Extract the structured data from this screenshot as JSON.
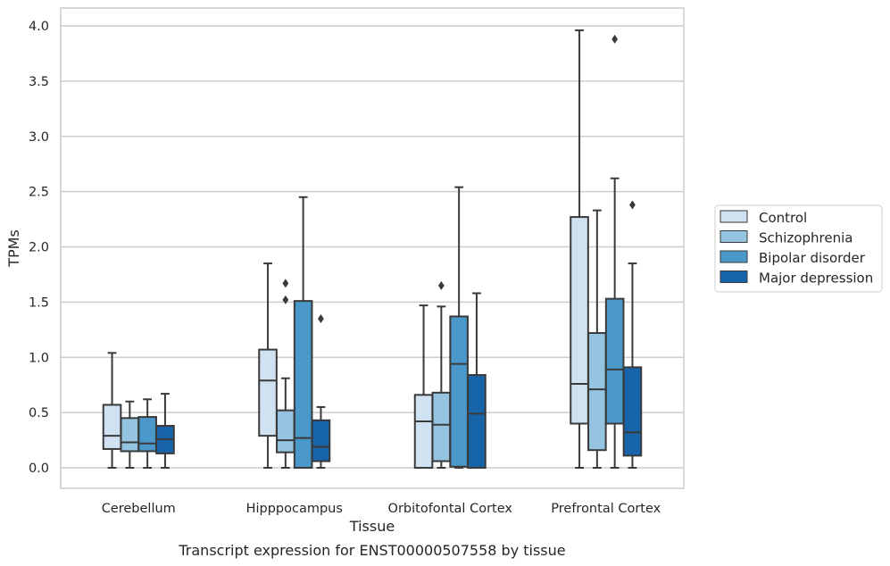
{
  "chart_data": {
    "type": "box",
    "title": "",
    "caption": "Transcript expression for ENST00000507558 by tissue",
    "xlabel": "Tissue",
    "ylabel": "TPMs",
    "ylim": [
      -0.2,
      4.17
    ],
    "yticks": [
      0.0,
      0.5,
      1.0,
      1.5,
      2.0,
      2.5,
      3.0,
      3.5,
      4.0
    ],
    "ytick_labels": [
      "0.0",
      "0.5",
      "1.0",
      "1.5",
      "2.0",
      "2.5",
      "3.0",
      "3.5",
      "4.0"
    ],
    "grid": "horizontal",
    "legend_position": "right-center",
    "categories": [
      "Cerebellum",
      "Hipppocampus",
      "Orbitofontal Cortex",
      "Prefrontal Cortex"
    ],
    "series": [
      {
        "name": "Control",
        "color": "#d0e1f2",
        "boxes": [
          {
            "whislo": 0.0,
            "q1": 0.17,
            "med": 0.29,
            "q3": 0.57,
            "whishi": 1.04,
            "fliers": []
          },
          {
            "whislo": 0.0,
            "q1": 0.29,
            "med": 0.79,
            "q3": 1.07,
            "whishi": 1.85,
            "fliers": []
          },
          {
            "whislo": 0.0,
            "q1": 0.0,
            "med": 0.42,
            "q3": 0.66,
            "whishi": 1.47,
            "fliers": []
          },
          {
            "whislo": 0.0,
            "q1": 0.4,
            "med": 0.76,
            "q3": 2.27,
            "whishi": 3.96,
            "fliers": []
          }
        ]
      },
      {
        "name": "Schizophrenia",
        "color": "#94c4df",
        "boxes": [
          {
            "whislo": 0.0,
            "q1": 0.15,
            "med": 0.23,
            "q3": 0.45,
            "whishi": 0.6,
            "fliers": []
          },
          {
            "whislo": 0.0,
            "q1": 0.14,
            "med": 0.25,
            "q3": 0.52,
            "whishi": 0.81,
            "fliers": [
              1.52,
              1.67
            ]
          },
          {
            "whislo": 0.0,
            "q1": 0.06,
            "med": 0.39,
            "q3": 0.68,
            "whishi": 1.46,
            "fliers": [
              1.65
            ]
          },
          {
            "whislo": 0.0,
            "q1": 0.16,
            "med": 0.71,
            "q3": 1.22,
            "whishi": 2.33,
            "fliers": []
          }
        ]
      },
      {
        "name": "Bipolar disorder",
        "color": "#4a98c9",
        "boxes": [
          {
            "whislo": 0.0,
            "q1": 0.15,
            "med": 0.22,
            "q3": 0.46,
            "whishi": 0.62,
            "fliers": []
          },
          {
            "whislo": 0.0,
            "q1": 0.0,
            "med": 0.27,
            "q3": 1.51,
            "whishi": 2.45,
            "fliers": []
          },
          {
            "whislo": 0.0,
            "q1": 0.01,
            "med": 0.94,
            "q3": 1.37,
            "whishi": 2.54,
            "fliers": []
          },
          {
            "whislo": 0.0,
            "q1": 0.4,
            "med": 0.89,
            "q3": 1.53,
            "whishi": 2.62,
            "fliers": [
              3.88
            ]
          }
        ]
      },
      {
        "name": "Major depression",
        "color": "#1764ab",
        "boxes": [
          {
            "whislo": 0.0,
            "q1": 0.13,
            "med": 0.26,
            "q3": 0.38,
            "whishi": 0.67,
            "fliers": []
          },
          {
            "whislo": 0.0,
            "q1": 0.06,
            "med": 0.19,
            "q3": 0.43,
            "whishi": 0.55,
            "fliers": [
              1.35
            ]
          },
          {
            "whislo": 0.0,
            "q1": 0.0,
            "med": 0.49,
            "q3": 0.84,
            "whishi": 1.58,
            "fliers": []
          },
          {
            "whislo": 0.0,
            "q1": 0.11,
            "med": 0.32,
            "q3": 0.91,
            "whishi": 1.85,
            "fliers": [
              2.38
            ]
          }
        ]
      }
    ]
  }
}
